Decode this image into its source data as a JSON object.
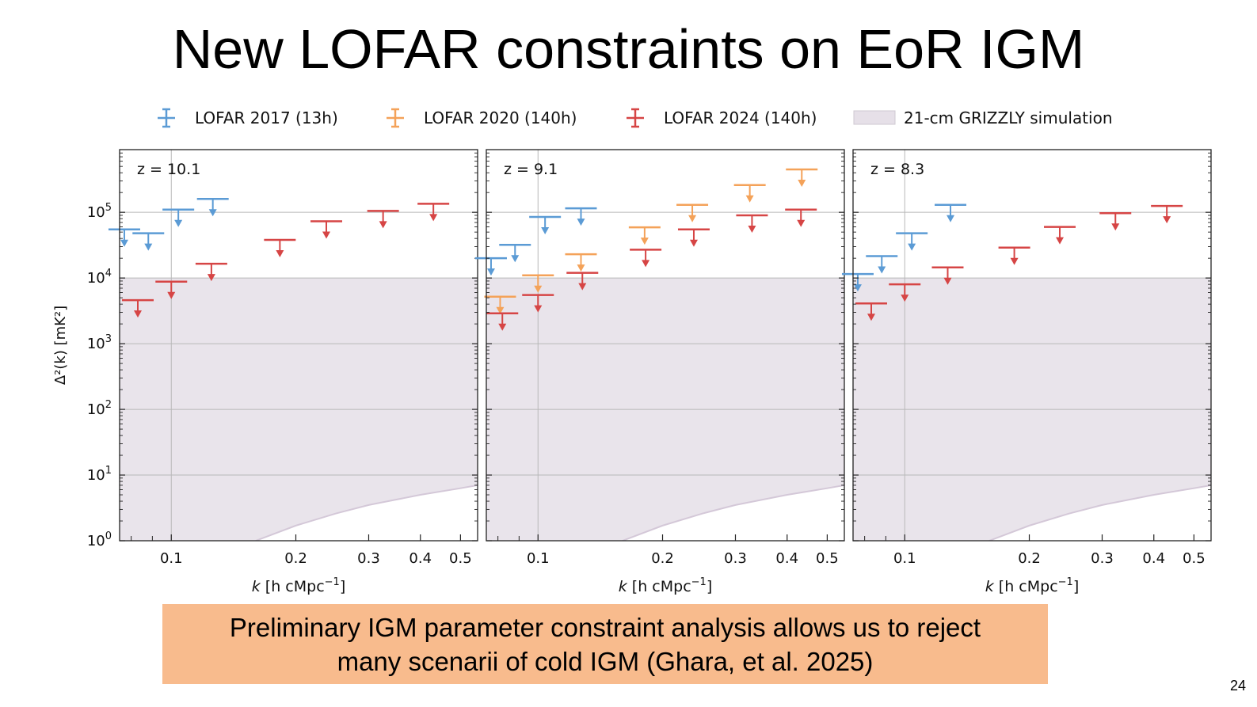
{
  "slide": {
    "title": "New LOFAR constraints on EoR IGM",
    "callout_line1": "Preliminary IGM parameter constraint analysis allows us to reject",
    "callout_line2": "many scenarii of cold IGM (Ghara, et al. 2025)",
    "page_number": "24"
  },
  "chart_data": {
    "type": "scatter",
    "subtype": "upper-limits",
    "xscale": "log",
    "yscale": "log",
    "xlim": [
      0.075,
      0.55
    ],
    "ylim": [
      1,
      900000
    ],
    "xticks": [
      0.1,
      0.2,
      0.3,
      0.4,
      0.5
    ],
    "xtick_labels": [
      "0.1",
      "0.2",
      "0.3",
      "0.4",
      "0.5"
    ],
    "ytick_exponents": [
      "0",
      "1",
      "2",
      "3",
      "4",
      "5"
    ],
    "ylabel": "Δ²(k) [mK²]",
    "xlabel_prefix": "k",
    "xlabel_main": " [h cMpc",
    "xlabel_sup": "−1",
    "xlabel_close": "]",
    "legend": [
      {
        "name": "LOFAR 2017 (13h)",
        "color": "#5b9bd5",
        "marker": "errorbar"
      },
      {
        "name": "LOFAR 2020 (140h)",
        "color": "#f4a259",
        "marker": "errorbar"
      },
      {
        "name": "LOFAR 2024 (140h)",
        "color": "#d64545",
        "marker": "errorbar"
      },
      {
        "name": "21-cm GRIZZLY simulation",
        "color": "#e6e0e8",
        "marker": "band"
      }
    ],
    "panels": [
      {
        "label": "z = 10.1",
        "band": {
          "upper": 10000,
          "lower_curve": [
            [
              0.16,
              1
            ],
            [
              0.2,
              1.7
            ],
            [
              0.25,
              2.6
            ],
            [
              0.3,
              3.5
            ],
            [
              0.4,
              5
            ],
            [
              0.5,
              6.3
            ],
            [
              0.55,
              7
            ]
          ]
        },
        "series": [
          {
            "name": "LOFAR 2017 (13h)",
            "color": "#5b9bd5",
            "points": [
              [
                0.077,
                55000
              ],
              [
                0.088,
                48000
              ],
              [
                0.104,
                110000
              ],
              [
                0.126,
                160000
              ]
            ]
          },
          {
            "name": "LOFAR 2024 (140h)",
            "color": "#d64545",
            "points": [
              [
                0.083,
                4600
              ],
              [
                0.1,
                8800
              ],
              [
                0.125,
                16500
              ],
              [
                0.183,
                38000
              ],
              [
                0.237,
                73000
              ],
              [
                0.325,
                105000
              ],
              [
                0.43,
                135000
              ]
            ]
          }
        ]
      },
      {
        "label": "z = 9.1",
        "band": {
          "upper": 10000,
          "lower_curve": [
            [
              0.16,
              1
            ],
            [
              0.2,
              1.7
            ],
            [
              0.25,
              2.6
            ],
            [
              0.3,
              3.5
            ],
            [
              0.4,
              5
            ],
            [
              0.5,
              6.3
            ],
            [
              0.55,
              7
            ]
          ]
        },
        "series": [
          {
            "name": "LOFAR 2017 (13h)",
            "color": "#5b9bd5",
            "points": [
              [
                0.077,
                20000
              ],
              [
                0.088,
                32000
              ],
              [
                0.104,
                85000
              ],
              [
                0.127,
                115000
              ]
            ]
          },
          {
            "name": "LOFAR 2020 (140h)",
            "color": "#f4a259",
            "points": [
              [
                0.081,
                5200
              ],
              [
                0.1,
                11000
              ],
              [
                0.127,
                23000
              ],
              [
                0.181,
                59000
              ],
              [
                0.236,
                130000
              ],
              [
                0.325,
                260000
              ],
              [
                0.434,
                450000
              ]
            ]
          },
          {
            "name": "LOFAR 2024 (140h)",
            "color": "#d64545",
            "points": [
              [
                0.082,
                2900
              ],
              [
                0.1,
                5500
              ],
              [
                0.128,
                12000
              ],
              [
                0.182,
                27000
              ],
              [
                0.238,
                55000
              ],
              [
                0.329,
                90000
              ],
              [
                0.432,
                110000
              ]
            ]
          }
        ]
      },
      {
        "label": "z = 8.3",
        "band": {
          "upper": 10000,
          "lower_curve": [
            [
              0.16,
              1
            ],
            [
              0.2,
              1.7
            ],
            [
              0.25,
              2.6
            ],
            [
              0.3,
              3.5
            ],
            [
              0.4,
              5
            ],
            [
              0.5,
              6.3
            ],
            [
              0.55,
              7
            ]
          ]
        },
        "series": [
          {
            "name": "LOFAR 2017 (13h)",
            "color": "#5b9bd5",
            "points": [
              [
                0.077,
                11500
              ],
              [
                0.088,
                21500
              ],
              [
                0.104,
                48000
              ],
              [
                0.129,
                130000
              ]
            ]
          },
          {
            "name": "LOFAR 2024 (140h)",
            "color": "#d64545",
            "points": [
              [
                0.083,
                4100
              ],
              [
                0.1,
                8000
              ],
              [
                0.127,
                14500
              ],
              [
                0.184,
                29000
              ],
              [
                0.237,
                60000
              ],
              [
                0.323,
                97000
              ],
              [
                0.43,
                125000
              ]
            ]
          }
        ]
      }
    ]
  }
}
